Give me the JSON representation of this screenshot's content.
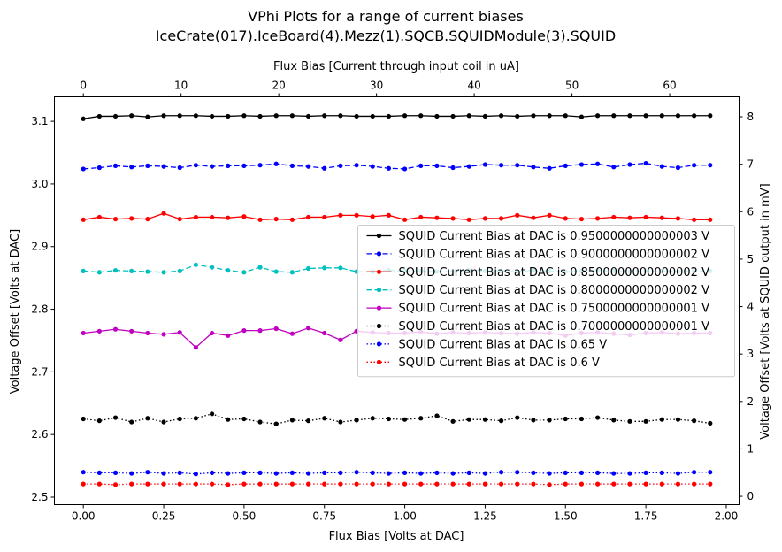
{
  "chart_data": {
    "type": "line",
    "title_line1": "VPhi Plots for a range of current biases",
    "title_line2": "IceCrate(017).IceBoard(4).Mezz(1).SQCB.SQUIDModule(3).SQUID",
    "xlabel": "Flux Bias [Volts at DAC]",
    "ylabel": "Voltage Offset [Volts at DAC]",
    "top_xlabel": "Flux Bias [Current through input coil in uA]",
    "right_ylabel": "Voltage Offset [Volts at SQUID output in mV]",
    "xlim": [
      -0.09,
      2.04
    ],
    "ylim": [
      2.488,
      3.139
    ],
    "xticks": [
      0.0,
      0.25,
      0.5,
      0.75,
      1.0,
      1.25,
      1.5,
      1.75,
      2.0
    ],
    "xtick_labels": [
      "0.00",
      "0.25",
      "0.50",
      "0.75",
      "1.00",
      "1.25",
      "1.50",
      "1.75",
      "2.00"
    ],
    "yticks": [
      2.5,
      2.6,
      2.7,
      2.8,
      2.9,
      3.0,
      3.1
    ],
    "ytick_labels": [
      "2.5",
      "2.6",
      "2.7",
      "2.8",
      "2.9",
      "3.0",
      "3.1"
    ],
    "top_xlim": [
      -2.96,
      67.1
    ],
    "top_xticks": [
      0,
      10,
      20,
      30,
      40,
      50,
      60
    ],
    "top_xtick_labels": [
      "0",
      "10",
      "20",
      "30",
      "40",
      "50",
      "60"
    ],
    "right_ylim": [
      -0.176,
      8.42
    ],
    "right_yticks": [
      0,
      1,
      2,
      3,
      4,
      5,
      6,
      7,
      8
    ],
    "right_ytick_labels": [
      "0",
      "1",
      "2",
      "3",
      "4",
      "5",
      "6",
      "7",
      "8"
    ],
    "legend_position": "center-right",
    "grid": false,
    "x": [
      0.0,
      0.05,
      0.1,
      0.15,
      0.2,
      0.25,
      0.3,
      0.35,
      0.4,
      0.45,
      0.5,
      0.55,
      0.6,
      0.65,
      0.7,
      0.75,
      0.8,
      0.85,
      0.9,
      0.95,
      1.0,
      1.05,
      1.1,
      1.15,
      1.2,
      1.25,
      1.3,
      1.35,
      1.4,
      1.45,
      1.5,
      1.55,
      1.6,
      1.65,
      1.7,
      1.75,
      1.8,
      1.85,
      1.9,
      1.95
    ],
    "series": [
      {
        "name": "SQUID Current Bias at DAC is 0.9500000000000003 V",
        "color": "#000000",
        "linestyle": "solid",
        "values": [
          3.104,
          3.108,
          3.108,
          3.109,
          3.107,
          3.109,
          3.109,
          3.109,
          3.108,
          3.108,
          3.109,
          3.108,
          3.109,
          3.109,
          3.108,
          3.109,
          3.109,
          3.108,
          3.108,
          3.108,
          3.109,
          3.109,
          3.108,
          3.108,
          3.109,
          3.108,
          3.109,
          3.108,
          3.109,
          3.109,
          3.109,
          3.107,
          3.109,
          3.109,
          3.109,
          3.109,
          3.109,
          3.109,
          3.109,
          3.109
        ]
      },
      {
        "name": "SQUID Current Bias at DAC is 0.9000000000000002 V",
        "color": "#0000ff",
        "linestyle": "dashed",
        "values": [
          3.024,
          3.026,
          3.029,
          3.027,
          3.029,
          3.028,
          3.026,
          3.03,
          3.028,
          3.029,
          3.029,
          3.03,
          3.032,
          3.029,
          3.028,
          3.025,
          3.029,
          3.03,
          3.028,
          3.025,
          3.024,
          3.029,
          3.029,
          3.026,
          3.028,
          3.031,
          3.03,
          3.03,
          3.027,
          3.025,
          3.029,
          3.031,
          3.032,
          3.027,
          3.031,
          3.033,
          3.028,
          3.026,
          3.03,
          3.03
        ]
      },
      {
        "name": "SQUID Current Bias at DAC is 0.8500000000000002 V",
        "color": "#ff0000",
        "linestyle": "solid",
        "values": [
          2.943,
          2.947,
          2.944,
          2.945,
          2.944,
          2.953,
          2.944,
          2.947,
          2.947,
          2.946,
          2.948,
          2.943,
          2.944,
          2.943,
          2.947,
          2.947,
          2.95,
          2.95,
          2.948,
          2.95,
          2.943,
          2.947,
          2.946,
          2.945,
          2.943,
          2.945,
          2.945,
          2.95,
          2.946,
          2.95,
          2.945,
          2.944,
          2.945,
          2.947,
          2.946,
          2.947,
          2.946,
          2.945,
          2.943,
          2.943
        ]
      },
      {
        "name": "SQUID Current Bias at DAC is 0.8000000000000002 V",
        "color": "#00bfbf",
        "linestyle": "dashed",
        "values": [
          2.861,
          2.859,
          2.862,
          2.861,
          2.86,
          2.859,
          2.861,
          2.871,
          2.867,
          2.862,
          2.859,
          2.867,
          2.86,
          2.859,
          2.865,
          2.866,
          2.866,
          2.86,
          2.86,
          2.862,
          2.861,
          2.861,
          2.86,
          2.86,
          2.862,
          2.861,
          2.861,
          2.86,
          2.862,
          2.861,
          2.86,
          2.861,
          2.862,
          2.861,
          2.86,
          2.861,
          2.861,
          2.86,
          2.861,
          2.861
        ]
      },
      {
        "name": "SQUID Current Bias at DAC is 0.7500000000000001 V",
        "color": "#bf00bf",
        "linestyle": "solid",
        "values": [
          2.762,
          2.765,
          2.768,
          2.765,
          2.762,
          2.76,
          2.763,
          2.739,
          2.762,
          2.758,
          2.766,
          2.766,
          2.769,
          2.761,
          2.77,
          2.762,
          2.751,
          2.765,
          2.763,
          2.762,
          2.762,
          2.764,
          2.761,
          2.763,
          2.762,
          2.763,
          2.762,
          2.761,
          2.763,
          2.762,
          2.758,
          2.762,
          2.763,
          2.761,
          2.759,
          2.762,
          2.763,
          2.761,
          2.762,
          2.762
        ]
      },
      {
        "name": "SQUID Current Bias at DAC is 0.7000000000000001 V",
        "color": "#000000",
        "linestyle": "dotted",
        "values": [
          2.625,
          2.622,
          2.627,
          2.62,
          2.626,
          2.62,
          2.625,
          2.626,
          2.633,
          2.624,
          2.625,
          2.62,
          2.617,
          2.623,
          2.622,
          2.626,
          2.62,
          2.623,
          2.626,
          2.625,
          2.624,
          2.626,
          2.63,
          2.621,
          2.624,
          2.624,
          2.622,
          2.627,
          2.623,
          2.623,
          2.625,
          2.625,
          2.627,
          2.623,
          2.621,
          2.621,
          2.624,
          2.624,
          2.622,
          2.618
        ]
      },
      {
        "name": "SQUID Current Bias at DAC is 0.65 V",
        "color": "#0000ff",
        "linestyle": "dotted",
        "values": [
          2.54,
          2.539,
          2.539,
          2.538,
          2.54,
          2.538,
          2.539,
          2.537,
          2.539,
          2.538,
          2.539,
          2.539,
          2.538,
          2.539,
          2.538,
          2.539,
          2.539,
          2.54,
          2.539,
          2.538,
          2.539,
          2.538,
          2.539,
          2.538,
          2.539,
          2.538,
          2.54,
          2.54,
          2.539,
          2.538,
          2.539,
          2.539,
          2.539,
          2.538,
          2.538,
          2.539,
          2.539,
          2.538,
          2.54,
          2.54
        ]
      },
      {
        "name": "SQUID Current Bias at DAC is 0.6 V",
        "color": "#ff0000",
        "linestyle": "dotted",
        "values": [
          2.521,
          2.521,
          2.52,
          2.521,
          2.521,
          2.521,
          2.521,
          2.521,
          2.521,
          2.52,
          2.521,
          2.521,
          2.521,
          2.521,
          2.521,
          2.521,
          2.521,
          2.521,
          2.521,
          2.521,
          2.521,
          2.521,
          2.521,
          2.521,
          2.521,
          2.521,
          2.521,
          2.521,
          2.521,
          2.52,
          2.521,
          2.521,
          2.521,
          2.521,
          2.521,
          2.521,
          2.521,
          2.521,
          2.521,
          2.521
        ]
      }
    ]
  }
}
